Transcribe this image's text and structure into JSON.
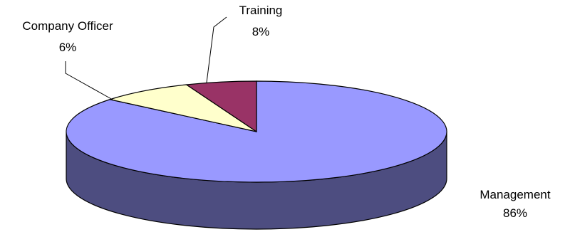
{
  "chart_data": {
    "type": "pie",
    "style": "3d",
    "categories": [
      "Management",
      "Training",
      "Company Officer"
    ],
    "values": [
      86,
      8,
      6
    ],
    "value_labels": [
      "86%",
      "8%",
      "6%"
    ],
    "colors": {
      "Management": "#9999ff",
      "Training": "#ffffcc",
      "Company Officer": "#993366"
    },
    "side_colors": {
      "Management": "#4d4d80",
      "Training": "#808066",
      "Company Officer": "#4d1a33"
    },
    "start_angle_deg": 90,
    "direction": "clockwise",
    "legend": "none",
    "data_labels": "category and percentage, with leader lines"
  }
}
